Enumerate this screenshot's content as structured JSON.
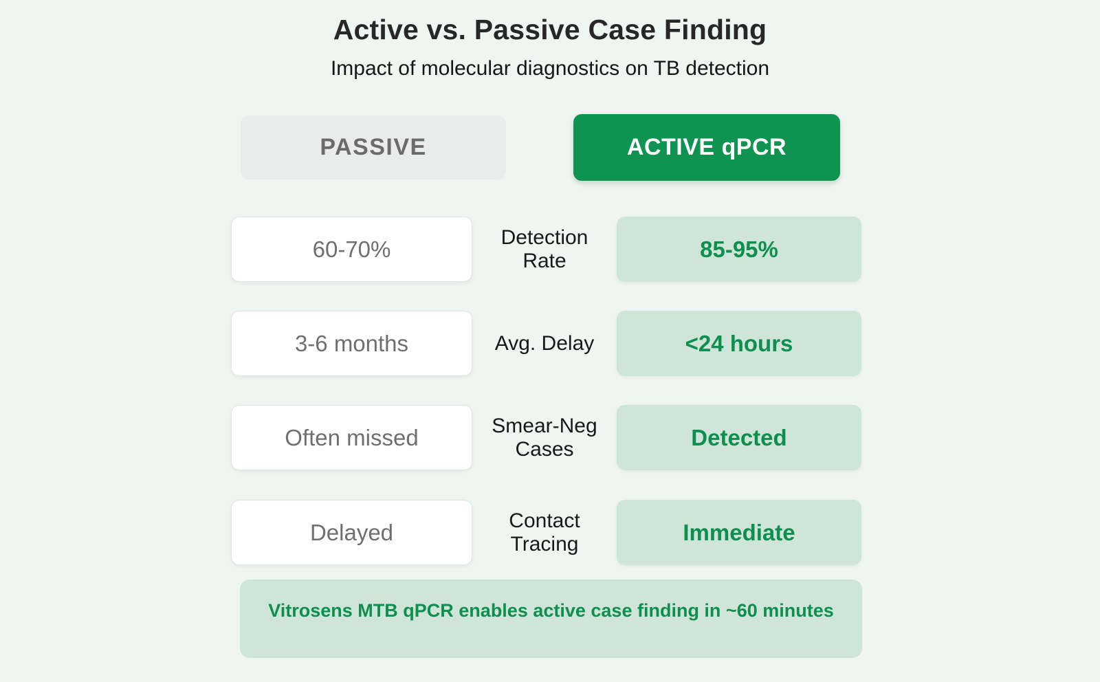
{
  "title": "Active vs. Passive Case Finding",
  "subtitle": "Impact of molecular diagnostics on TB detection",
  "columns": {
    "passive": {
      "label": "PASSIVE"
    },
    "active": {
      "label": "ACTIVE qPCR"
    }
  },
  "rows": [
    {
      "metric": "Detection Rate",
      "metric_lines": [
        "Detection",
        "Rate"
      ],
      "passive": "60-70%",
      "active": "85-95%"
    },
    {
      "metric": "Avg. Delay",
      "metric_lines": [
        "Avg. Delay"
      ],
      "passive": "3-6 months",
      "active": "<24 hours"
    },
    {
      "metric": "Smear-Neg Cases",
      "metric_lines": [
        "Smear-Neg",
        "Cases"
      ],
      "passive": "Often missed",
      "active": "Detected"
    },
    {
      "metric": "Contact Tracing",
      "metric_lines": [
        "Contact",
        "Tracing"
      ],
      "passive": "Delayed",
      "active": "Immediate"
    }
  ],
  "footer": {
    "banner": "Vitrosens MTB qPCR enables active case finding in ~60 minutes"
  },
  "colors": {
    "background": "#eff5f0",
    "active_header_bg": "#0f9351",
    "active_header_text": "#ffffff",
    "passive_header_bg": "#eaecec",
    "passive_header_text": "#6b6b6b",
    "light_green_card_bg": "#cee5d8",
    "green_text": "#0e8f50",
    "passive_card_bg": "#ffffff",
    "passive_card_text": "#6f6f6f",
    "label_text": "#191919",
    "title_text": "#272727"
  }
}
